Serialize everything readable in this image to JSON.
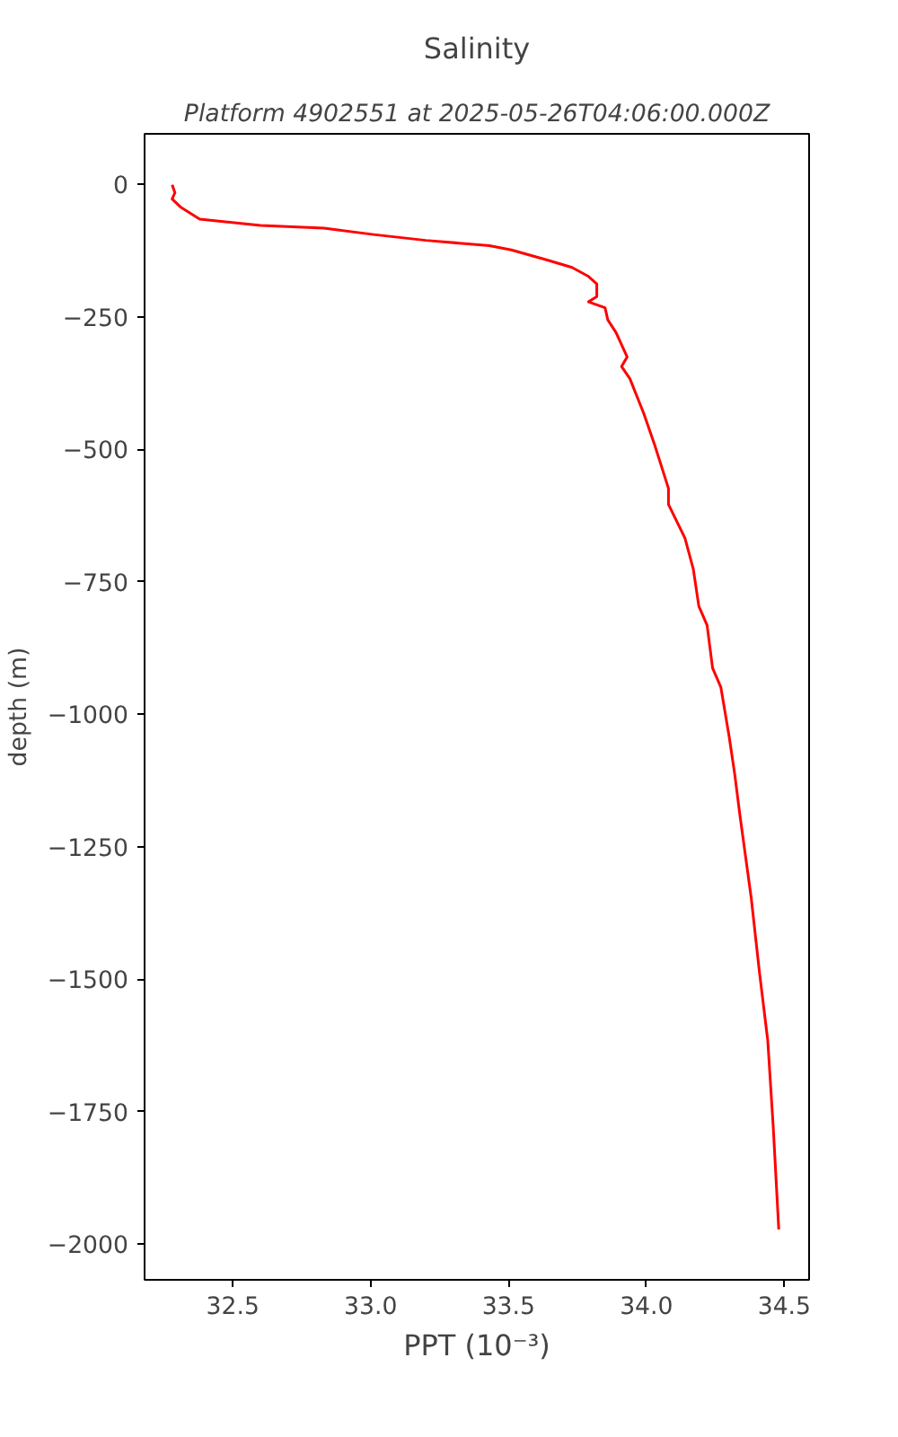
{
  "chart_data": {
    "type": "line",
    "title": "Salinity",
    "subtitle": "Platform 4902551 at 2025-05-26T04:06:00.000Z",
    "xlabel": "PPT (10⁻³)",
    "ylabel": "depth (m)",
    "series": [
      {
        "color": "#ff0000",
        "x": [
          32.28,
          32.29,
          32.28,
          32.31,
          32.38,
          32.6,
          32.83,
          33.01,
          33.2,
          33.43,
          33.51,
          33.64,
          33.73,
          33.79,
          33.82,
          33.82,
          33.79,
          33.85,
          33.86,
          33.89,
          33.93,
          33.91,
          33.94,
          33.99,
          34.03,
          34.08,
          34.08,
          34.14,
          34.17,
          34.19,
          34.22,
          34.24,
          34.27,
          34.3,
          34.32,
          34.34,
          34.38,
          34.41,
          34.44,
          34.46,
          34.48
        ],
        "values": [
          -1,
          -16,
          -28,
          -43,
          -66,
          -78,
          -83,
          -95,
          -106,
          -116,
          -124,
          -143,
          -157,
          -174,
          -188,
          -212,
          -222,
          -233,
          -256,
          -280,
          -326,
          -344,
          -367,
          -432,
          -492,
          -574,
          -604,
          -668,
          -726,
          -796,
          -832,
          -913,
          -949,
          -1042,
          -1112,
          -1194,
          -1346,
          -1487,
          -1615,
          -1779,
          -1972
        ]
      }
    ],
    "xlim": [
      32.18,
      34.59
    ],
    "ylim": [
      -2067,
      95
    ],
    "xticks": [
      32.5,
      {
        "value": 33,
        "label": "33.0"
      },
      33.5,
      {
        "value": 34,
        "label": "34.0"
      },
      34.5
    ],
    "yticks": [
      0,
      {
        "value": -250,
        "label": "−250"
      },
      {
        "value": -500,
        "label": "−500"
      },
      {
        "value": -750,
        "label": "−750"
      },
      {
        "value": -1000,
        "label": "−1000"
      },
      {
        "value": -1250,
        "label": "−1250"
      },
      {
        "value": -1500,
        "label": "−1500"
      },
      {
        "value": -1750,
        "label": "−1750"
      },
      {
        "value": -2000,
        "label": "−2000"
      }
    ],
    "grid": false,
    "marker": "none",
    "line_style": "solid"
  }
}
